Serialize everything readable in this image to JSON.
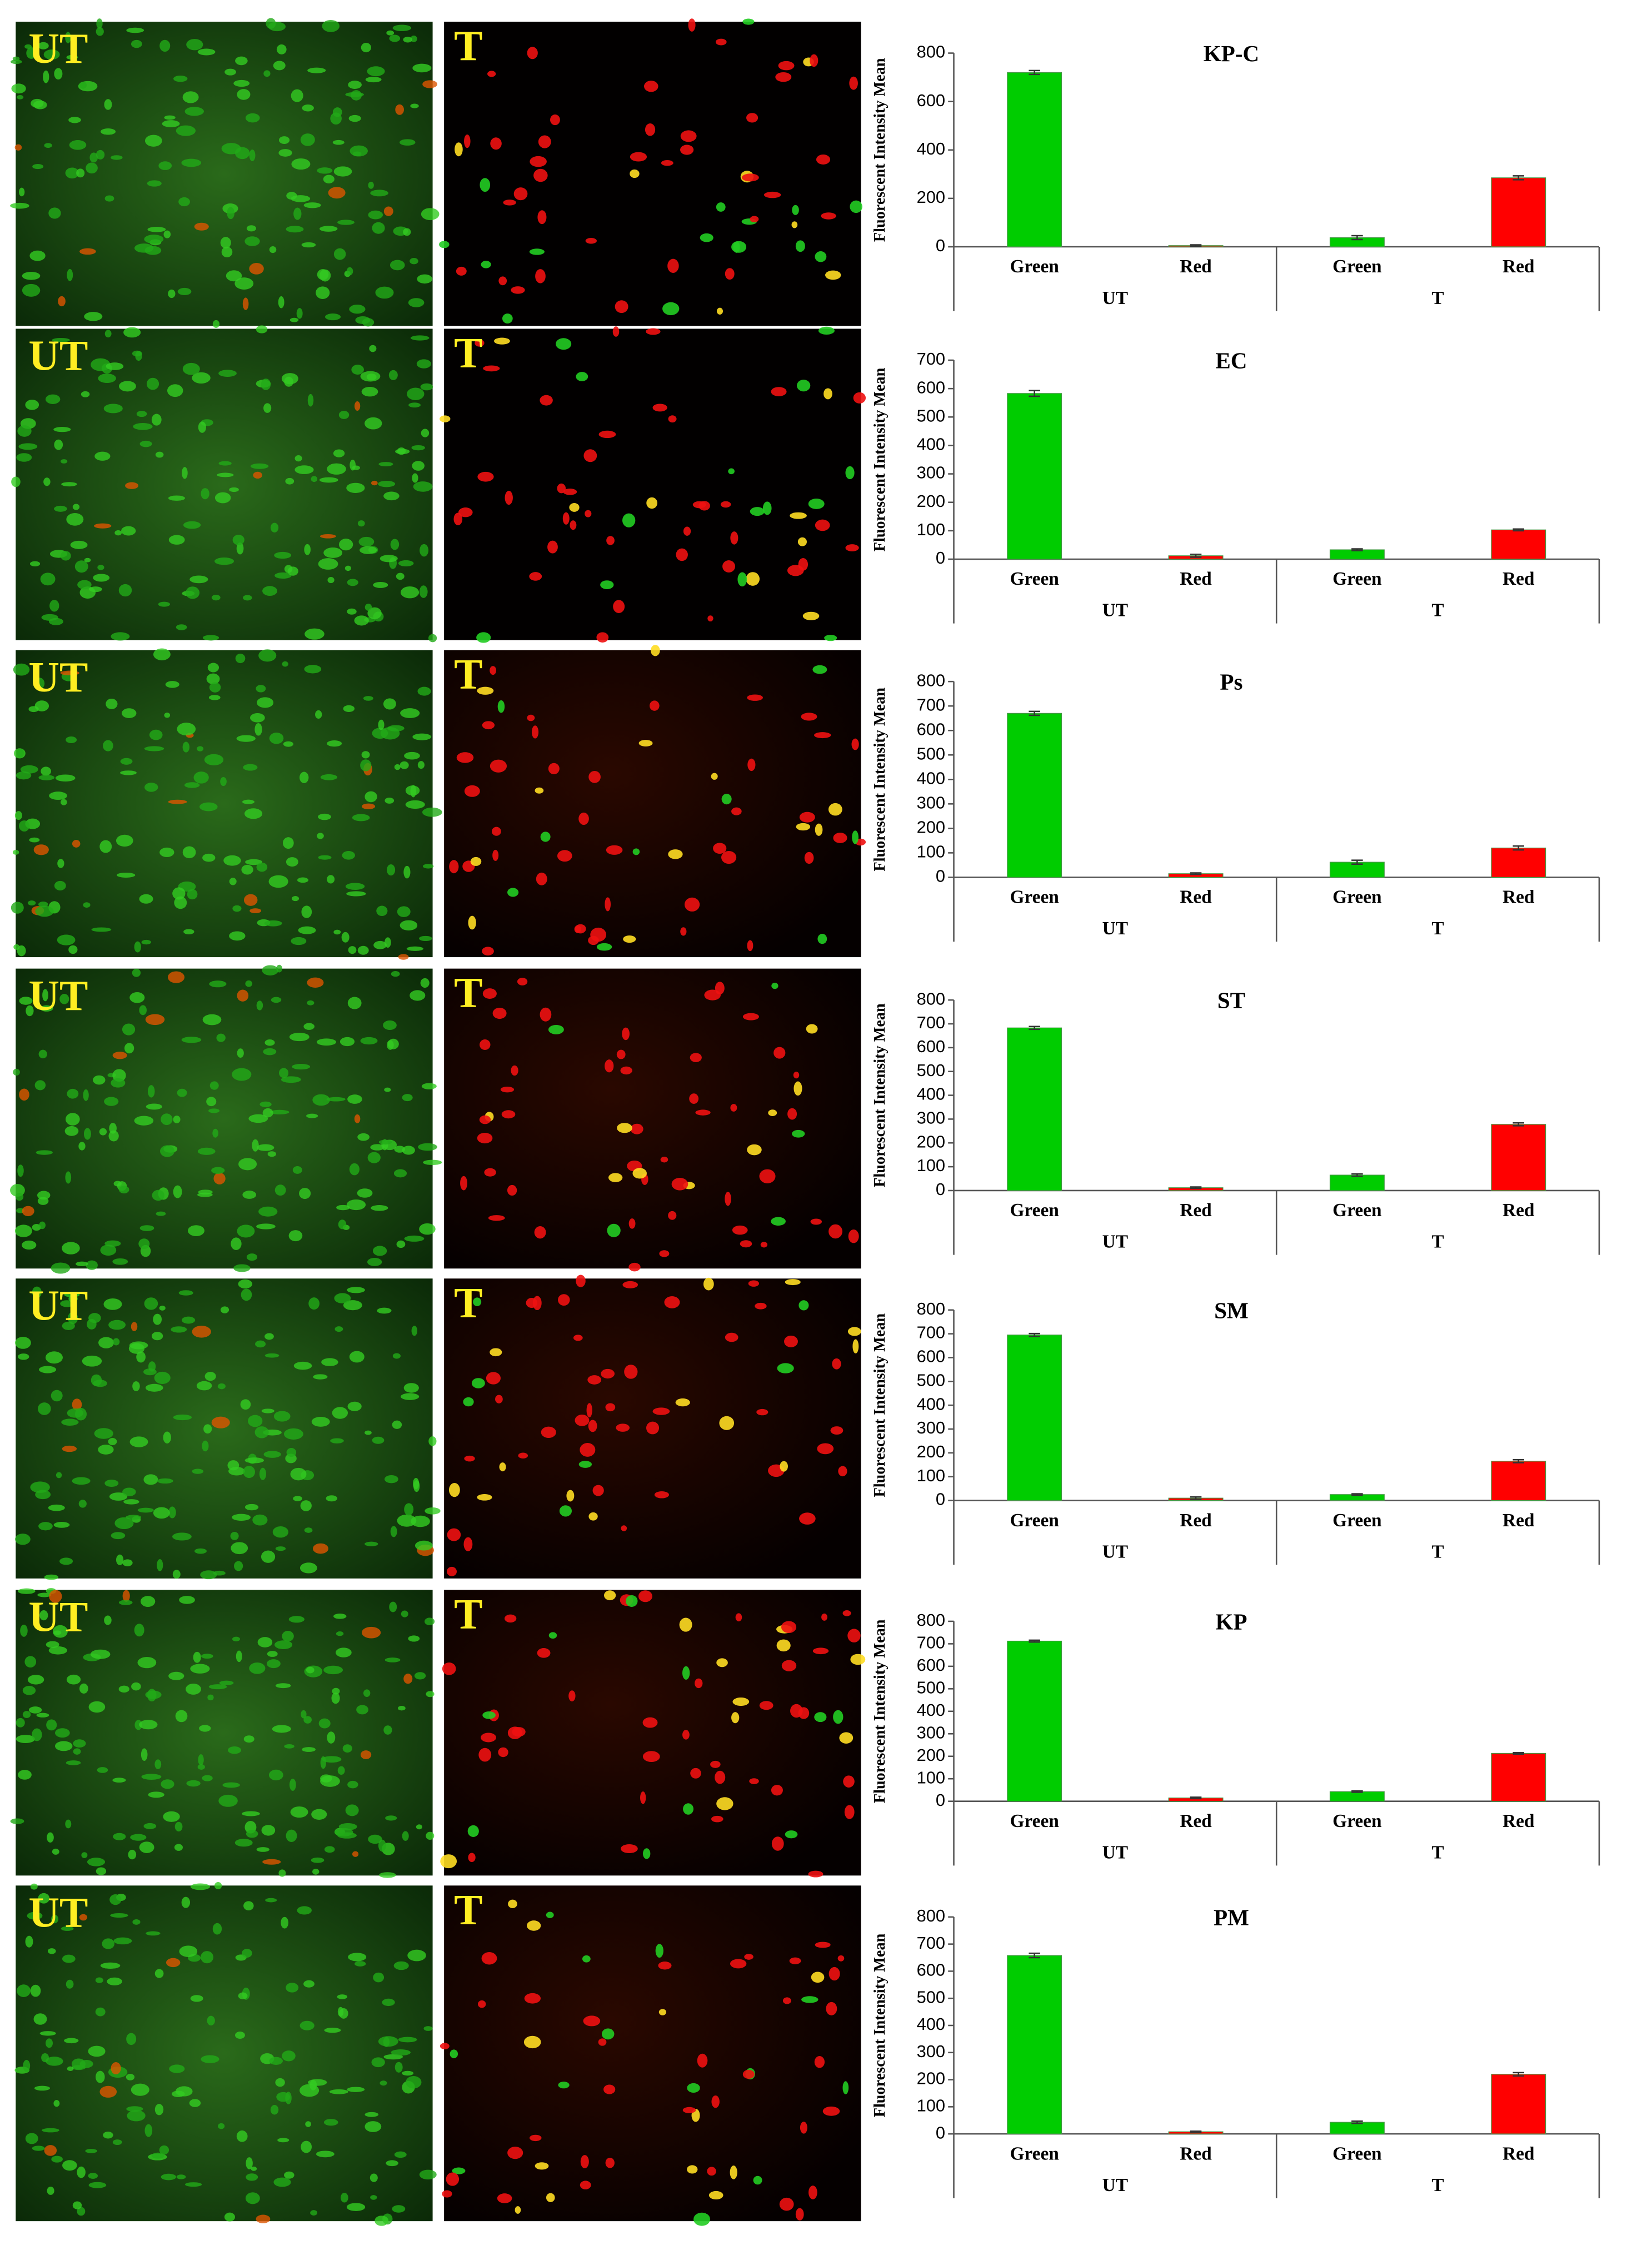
{
  "panels": [
    {
      "left": "UT",
      "right": "T"
    },
    {
      "left": "UT",
      "right": "T"
    },
    {
      "left": "UT",
      "right": "T"
    },
    {
      "left": "UT",
      "right": "T"
    },
    {
      "left": "UT",
      "right": "T"
    },
    {
      "left": "UT",
      "right": "T"
    },
    {
      "left": "UT",
      "right": "T"
    }
  ],
  "chart_data": [
    {
      "type": "bar",
      "title": "KP-C",
      "y_label": "Fluorescent Intensity Mean",
      "categories": [
        "Green",
        "Red",
        "Green",
        "Red"
      ],
      "groups": [
        "UT",
        "T"
      ],
      "values": [
        720,
        5,
        38,
        285
      ],
      "errors": [
        8,
        3,
        8,
        8
      ],
      "colors": [
        "#00cc00",
        "#ff0000",
        "#00cc00",
        "#ff0000"
      ],
      "ylim": [
        0,
        800
      ],
      "yticks": [
        0,
        200,
        400,
        600,
        800
      ]
    },
    {
      "type": "bar",
      "title": "EC",
      "y_label": "Fluorescent Intensity Mean",
      "categories": [
        "Green",
        "Red",
        "Green",
        "Red"
      ],
      "groups": [
        "UT",
        "T"
      ],
      "values": [
        583,
        12,
        33,
        103
      ],
      "errors": [
        10,
        5,
        3,
        3
      ],
      "colors": [
        "#00cc00",
        "#ff0000",
        "#00cc00",
        "#ff0000"
      ],
      "ylim": [
        0,
        700
      ],
      "yticks": [
        0,
        100,
        200,
        300,
        400,
        500,
        600,
        700
      ]
    },
    {
      "type": "bar",
      "title": "Ps",
      "y_label": "Fluorescent Intensity Mean",
      "categories": [
        "Green",
        "Red",
        "Green",
        "Red"
      ],
      "groups": [
        "UT",
        "T"
      ],
      "values": [
        670,
        15,
        62,
        120
      ],
      "errors": [
        8,
        3,
        8,
        8
      ],
      "colors": [
        "#00cc00",
        "#ff0000",
        "#00cc00",
        "#ff0000"
      ],
      "ylim": [
        0,
        800
      ],
      "yticks": [
        0,
        100,
        200,
        300,
        400,
        500,
        600,
        700,
        800
      ]
    },
    {
      "type": "bar",
      "title": "ST",
      "y_label": "Fluorescent Intensity Mean",
      "categories": [
        "Green",
        "Red",
        "Green",
        "Red"
      ],
      "groups": [
        "UT",
        "T"
      ],
      "values": [
        683,
        12,
        65,
        278
      ],
      "errors": [
        6,
        3,
        5,
        6
      ],
      "colors": [
        "#00cc00",
        "#ff0000",
        "#00cc00",
        "#ff0000"
      ],
      "ylim": [
        0,
        800
      ],
      "yticks": [
        0,
        100,
        200,
        300,
        400,
        500,
        600,
        700,
        800
      ]
    },
    {
      "type": "bar",
      "title": "SM",
      "y_label": "Fluorescent Intensity Mean",
      "categories": [
        "Green",
        "Red",
        "Green",
        "Red"
      ],
      "groups": [
        "UT",
        "T"
      ],
      "values": [
        695,
        10,
        25,
        165
      ],
      "errors": [
        6,
        5,
        3,
        6
      ],
      "colors": [
        "#00cc00",
        "#ff0000",
        "#00cc00",
        "#ff0000"
      ],
      "ylim": [
        0,
        800
      ],
      "yticks": [
        0,
        100,
        200,
        300,
        400,
        500,
        600,
        700,
        800
      ]
    },
    {
      "type": "bar",
      "title": "KP",
      "y_label": "Fluorescent Intensity Mean",
      "categories": [
        "Green",
        "Red",
        "Green",
        "Red"
      ],
      "groups": [
        "UT",
        "T"
      ],
      "values": [
        712,
        15,
        43,
        213
      ],
      "errors": [
        4,
        3,
        3,
        3
      ],
      "colors": [
        "#00cc00",
        "#ff0000",
        "#00cc00",
        "#ff0000"
      ],
      "ylim": [
        0,
        800
      ],
      "yticks": [
        0,
        100,
        200,
        300,
        400,
        500,
        600,
        700,
        800
      ]
    },
    {
      "type": "bar",
      "title": "PM",
      "y_label": "Fluorescent Intensity Mean",
      "categories": [
        "Green",
        "Red",
        "Green",
        "Red"
      ],
      "groups": [
        "UT",
        "T"
      ],
      "values": [
        658,
        8,
        43,
        220
      ],
      "errors": [
        8,
        2,
        4,
        6
      ],
      "colors": [
        "#00cc00",
        "#ff0000",
        "#00cc00",
        "#ff0000"
      ],
      "ylim": [
        0,
        800
      ],
      "yticks": [
        0,
        100,
        200,
        300,
        400,
        500,
        600,
        700,
        800
      ]
    }
  ]
}
